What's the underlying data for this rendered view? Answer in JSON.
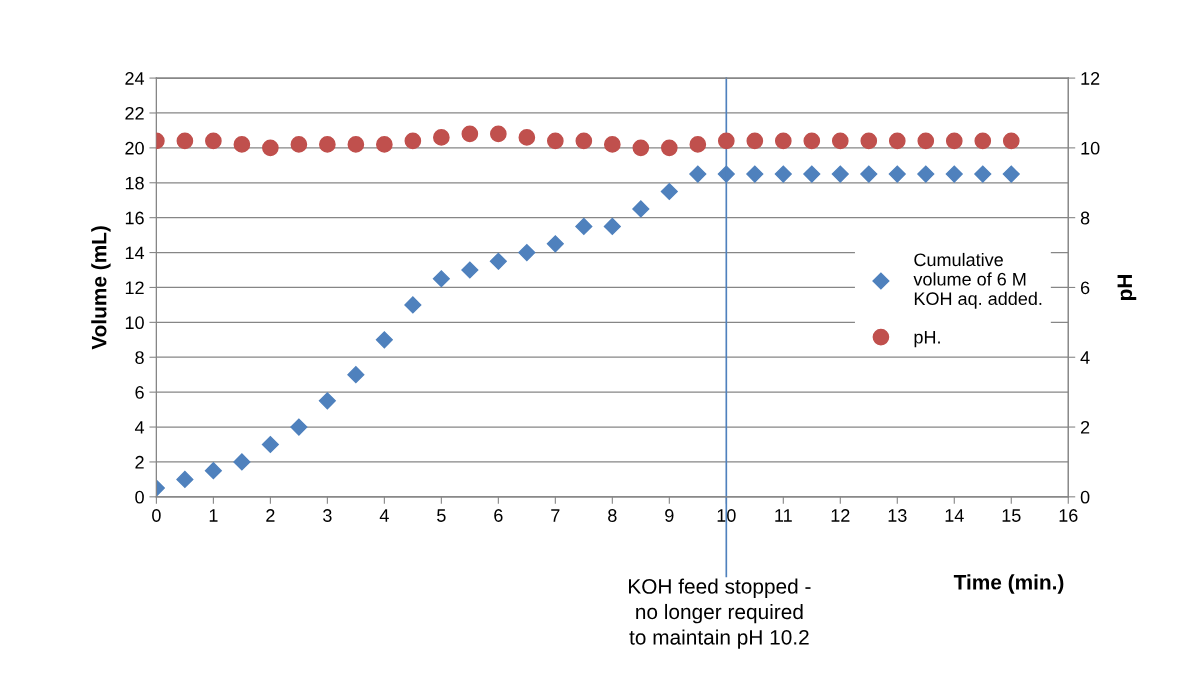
{
  "chart_data": {
    "type": "scatter",
    "xlabel": "Time (min.)",
    "ylabel": "Volume (mL)",
    "y2label": "pH",
    "xlim": [
      0,
      16
    ],
    "xticks": [
      0,
      1,
      2,
      3,
      4,
      5,
      6,
      7,
      8,
      9,
      10,
      11,
      12,
      13,
      14,
      15,
      16
    ],
    "ylim": [
      0,
      24
    ],
    "yticks": [
      0,
      2,
      4,
      6,
      8,
      10,
      12,
      14,
      16,
      18,
      20,
      22,
      24
    ],
    "y2lim": [
      0,
      12
    ],
    "y2ticks": [
      0,
      2,
      4,
      6,
      8,
      10,
      12
    ],
    "grid": "y",
    "legend": "right",
    "x": [
      0,
      0.5,
      1,
      1.5,
      2,
      2.5,
      3,
      3.5,
      4,
      4.5,
      5,
      5.5,
      6,
      6.5,
      7,
      7.5,
      8,
      8.5,
      9,
      9.5,
      10,
      10.5,
      11,
      11.5,
      12,
      12.5,
      13,
      13.5,
      14,
      14.5,
      15
    ],
    "series": [
      {
        "name": "Cumulative\nvolume of 6 M\nKOH aq. added.",
        "color": "#4f81bd",
        "marker": "diamond",
        "values": [
          0.5,
          1,
          1.5,
          2,
          3,
          4,
          5.5,
          7,
          9,
          11,
          12.5,
          13,
          13.5,
          14,
          14.5,
          15.5,
          15.5,
          16.5,
          17.5,
          18.5,
          18.5,
          18.5,
          18.5,
          18.5,
          18.5,
          18.5,
          18.5,
          18.5,
          18.5,
          18.5,
          18.5
        ]
      },
      {
        "name": "pH.",
        "color": "#c0504d",
        "marker": "circle",
        "axis": "y2",
        "values": [
          10.2,
          10.2,
          10.2,
          10.1,
          10.0,
          10.1,
          10.1,
          10.1,
          10.1,
          10.2,
          10.3,
          10.4,
          10.4,
          10.3,
          10.2,
          10.2,
          10.1,
          10.0,
          10.0,
          10.1,
          10.2,
          10.2,
          10.2,
          10.2,
          10.2,
          10.2,
          10.2,
          10.2,
          10.2,
          10.2,
          10.2
        ]
      }
    ],
    "ref_lines": [
      {
        "axis": "x",
        "value": 10,
        "label": "KOH feed stopped -\nno longer required\nto maintain pH 10.2",
        "color": "#4f81bd"
      }
    ]
  }
}
